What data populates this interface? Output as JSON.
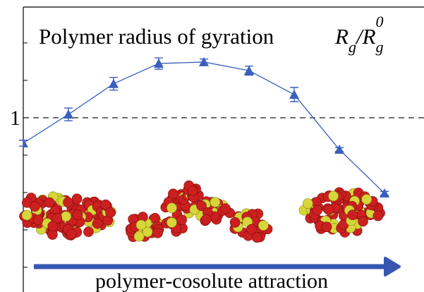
{
  "chart_data": {
    "type": "line",
    "title": "Polymer radius of gyration",
    "ylabel": {
      "base1": "R",
      "sub1": "g",
      "sep": "/",
      "base2": "R",
      "sub2": "g",
      "sup2": "0"
    },
    "xlabel": "polymer-cosolute attraction",
    "x": [
      0,
      1,
      2,
      3,
      4,
      5,
      6,
      7,
      8
    ],
    "series": [
      {
        "name": "Rg",
        "color": "#3a5fbf",
        "values": [
          0.932,
          1.009,
          1.091,
          1.145,
          1.149,
          1.126,
          1.062,
          0.915,
          0.798
        ],
        "errors": [
          0.008,
          0.017,
          0.017,
          0.015,
          0.008,
          0.012,
          0.019,
          0.005,
          0.005
        ]
      }
    ],
    "xlim": [
      0,
      8.875
    ],
    "ylim": [
      0.534,
      1.296
    ],
    "yticks": [
      1
    ],
    "minor_yticks": [
      0.6,
      0.7,
      0.8,
      0.9,
      1.1,
      1.2
    ],
    "reference_line": 1
  }
}
